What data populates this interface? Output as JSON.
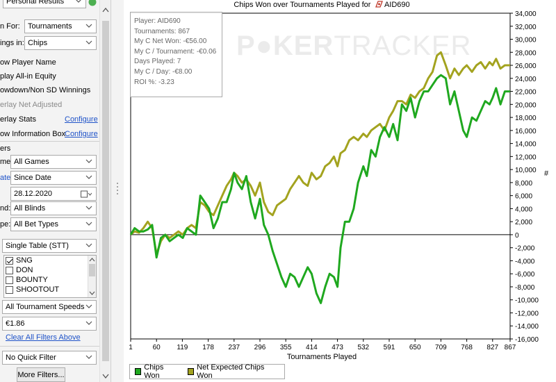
{
  "panel": {
    "top_select": "Personal Results",
    "show_for_label": "n For:",
    "show_for_value": "Tournaments",
    "winnings_in_label": "ings in:",
    "winnings_in_value": "Chips",
    "options": [
      {
        "label": "ow Player Name"
      },
      {
        "label": "play All-in Equity"
      },
      {
        "label": "owdown/Non SD Winnings"
      },
      {
        "label": "erlay Net Adjusted",
        "disabled": true
      },
      {
        "label": "erlay Stats",
        "link": "Configure"
      },
      {
        "label": "ow Information Box",
        "link": "Configure"
      }
    ],
    "filters_header": "ers",
    "game_label": "me:",
    "game_value": "All Games",
    "date_label": "ate:",
    "date_value": "Since Date",
    "date_input": "28.12.2020",
    "blinds_label": "nd:",
    "blinds_value": "All Blinds",
    "bettype_label": "pe:",
    "bettype_value": "All Bet Types",
    "table_value": "Single Table (STT)",
    "game_types": [
      {
        "label": "SNG",
        "checked": true
      },
      {
        "label": "DON",
        "checked": false
      },
      {
        "label": "BOUNTY",
        "checked": false
      },
      {
        "label": "SHOOTOUT",
        "checked": false
      }
    ],
    "speed_value": "All Tournament Speeds",
    "buyin_value": "€1.86",
    "clear_filters": "Clear All Filters Above",
    "quick_filter": "No Quick Filter",
    "more_filters": "More Filters..."
  },
  "chart_data": {
    "type": "line",
    "title": "Chips Won over Tournaments Played for",
    "player": "AID690",
    "xlabel": "Tournaments Played",
    "ylabel": "#",
    "xlim": [
      1,
      867
    ],
    "ylim": [
      -16000,
      34000
    ],
    "x_ticks": [
      1,
      60,
      119,
      178,
      237,
      296,
      355,
      414,
      473,
      532,
      591,
      650,
      709,
      768,
      827,
      867
    ],
    "y_ticks": [
      -16000,
      -14000,
      -12000,
      -10000,
      -8000,
      -6000,
      -4000,
      -2000,
      0,
      2000,
      4000,
      6000,
      8000,
      10000,
      12000,
      14000,
      16000,
      18000,
      20000,
      22000,
      24000,
      26000,
      28000,
      30000,
      32000,
      34000
    ],
    "y_tick_labels": [
      "-16,000",
      "-14,000",
      "-12,000",
      "-10,000",
      "-8,000",
      "-6,000",
      "-4,000",
      "-2,000",
      "0",
      "2,000",
      "4,000",
      "6,000",
      "8,000",
      "10,000",
      "12,000",
      "14,000",
      "16,000",
      "18,000",
      "20,000",
      "22,000",
      "24,000",
      "26,000",
      "28,000",
      "30,000",
      "32,000",
      "34,000"
    ],
    "series": [
      {
        "name": "Chips Won",
        "color": "#1fa81f",
        "x": [
          1,
          10,
          20,
          30,
          40,
          50,
          60,
          70,
          80,
          90,
          100,
          110,
          120,
          130,
          140,
          150,
          160,
          170,
          180,
          190,
          200,
          210,
          220,
          230,
          237,
          245,
          255,
          265,
          275,
          285,
          296,
          305,
          315,
          325,
          335,
          345,
          355,
          365,
          375,
          385,
          395,
          405,
          414,
          425,
          435,
          445,
          455,
          465,
          473,
          480,
          490,
          500,
          510,
          520,
          532,
          540,
          550,
          560,
          570,
          580,
          591,
          600,
          610,
          620,
          630,
          640,
          650,
          660,
          670,
          680,
          690,
          700,
          709,
          720,
          730,
          740,
          750,
          760,
          768,
          780,
          790,
          800,
          810,
          820,
          827,
          835,
          845,
          855,
          867
        ],
        "y": [
          0,
          1000,
          500,
          500,
          800,
          1500,
          -3500,
          -500,
          0,
          -1000,
          -500,
          0,
          -500,
          1000,
          500,
          0,
          6000,
          5000,
          4000,
          1000,
          2500,
          5000,
          5000,
          7000,
          9500,
          8000,
          7000,
          9000,
          5000,
          2500,
          5500,
          1500,
          0,
          -2500,
          -4500,
          -6500,
          -8000,
          -6000,
          -6500,
          -8000,
          -6500,
          -5000,
          -6000,
          -9000,
          -10500,
          -8000,
          -6000,
          -6500,
          -8000,
          -2000,
          2000,
          2000,
          4000,
          8000,
          10500,
          9000,
          13000,
          12000,
          15000,
          16500,
          15000,
          17000,
          14500,
          20000,
          19000,
          21000,
          18000,
          20500,
          22000,
          22000,
          23000,
          24000,
          24500,
          24000,
          20000,
          22000,
          19000,
          16000,
          15000,
          18000,
          17500,
          19000,
          20500,
          20000,
          21000,
          22500,
          20000,
          22000,
          22000
        ]
      },
      {
        "name": "Net Expected Chips Won",
        "color": "#a3a31f",
        "x": [
          1,
          10,
          20,
          30,
          40,
          50,
          60,
          70,
          80,
          90,
          100,
          110,
          120,
          130,
          140,
          150,
          160,
          170,
          180,
          190,
          200,
          210,
          220,
          230,
          237,
          245,
          255,
          265,
          275,
          285,
          296,
          305,
          315,
          325,
          335,
          345,
          355,
          365,
          375,
          385,
          395,
          405,
          414,
          425,
          435,
          445,
          455,
          465,
          473,
          480,
          490,
          500,
          510,
          520,
          532,
          540,
          550,
          560,
          570,
          580,
          591,
          600,
          610,
          620,
          630,
          640,
          650,
          660,
          670,
          680,
          690,
          700,
          709,
          720,
          730,
          740,
          750,
          760,
          768,
          780,
          790,
          800,
          810,
          820,
          827,
          835,
          845,
          855,
          867
        ],
        "y": [
          0,
          500,
          300,
          1000,
          2000,
          1000,
          -3000,
          -1000,
          0,
          -500,
          0,
          500,
          0,
          1000,
          1500,
          1000,
          5000,
          4500,
          3500,
          3000,
          4500,
          6000,
          7500,
          8500,
          9500,
          9000,
          8000,
          8500,
          7500,
          6000,
          8000,
          5000,
          3500,
          3000,
          4500,
          5000,
          5500,
          7000,
          8000,
          9000,
          8000,
          7500,
          9500,
          8500,
          9000,
          10500,
          11000,
          12000,
          10500,
          12500,
          13000,
          14500,
          15000,
          14500,
          15500,
          15000,
          16000,
          16500,
          17000,
          16000,
          18000,
          19000,
          20500,
          20500,
          20000,
          21500,
          21000,
          22000,
          22500,
          24000,
          25000,
          27500,
          28000,
          26000,
          24000,
          25500,
          24500,
          25500,
          26000,
          25000,
          26000,
          26500,
          25500,
          26500,
          26000,
          27000,
          25500,
          26000,
          26000
        ]
      }
    ],
    "legend_position": "bottom-left",
    "grid": false
  },
  "info_box": {
    "lines": [
      "Player: AID690",
      "Tournaments: 867",
      "My C Net Won: -€56.00",
      "My C / Tournament: -€0.06",
      "Days Played: 7",
      "My C / Day: -€8.00",
      "ROI %: -3.23"
    ]
  },
  "watermark": {
    "bold": "P",
    "bold2": "KER",
    "thin": "TRACKER"
  },
  "colors": {
    "green": "#1fa81f",
    "olive": "#a3a31f",
    "accent_link": "#1e52c8"
  }
}
